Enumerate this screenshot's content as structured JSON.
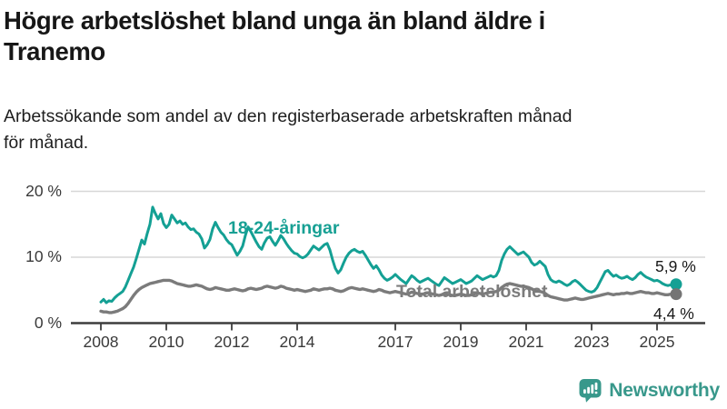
{
  "header": {
    "title_lines": [
      "Högre arbetslöshet bland unga än bland äldre i",
      "Tranemo"
    ],
    "subtitle_lines": [
      "Arbetssökande som andel av den registerbaserade arbetskraften månad",
      "för månad."
    ]
  },
  "chart_data": {
    "type": "line",
    "title": "Högre arbetslöshet bland unga än bland äldre i Tranemo",
    "subtitle": "Arbetssökande som andel av den registerbaserade arbetskraften månad för månad.",
    "frequency": "monthly",
    "period_start": "2008-01",
    "period_end": "2025-08",
    "ylim": [
      0,
      20
    ],
    "grid": "horizontal",
    "y_ticks": [
      {
        "value": 0,
        "label": "0 %"
      },
      {
        "value": 10,
        "label": "10 %"
      },
      {
        "value": 20,
        "label": "20 %"
      }
    ],
    "x_ticks": [
      {
        "value": 2008,
        "label": "2008"
      },
      {
        "value": 2010,
        "label": "2010"
      },
      {
        "value": 2012,
        "label": "2012"
      },
      {
        "value": 2014,
        "label": "2014"
      },
      {
        "value": 2017,
        "label": "2017"
      },
      {
        "value": 2019,
        "label": "2019"
      },
      {
        "value": 2021,
        "label": "2021"
      },
      {
        "value": 2023,
        "label": "2023"
      },
      {
        "value": 2025,
        "label": "2025"
      }
    ],
    "series": [
      {
        "label": "18-24-åringar",
        "color": "#14a094",
        "end_label": "5,9 %",
        "end_value": 5.9,
        "values": [
          3.2,
          3.6,
          3.1,
          3.4,
          3.3,
          3.8,
          4.2,
          4.5,
          4.8,
          5.5,
          6.5,
          7.5,
          8.5,
          9.8,
          11.2,
          12.6,
          12.0,
          13.6,
          15.0,
          17.6,
          16.6,
          15.8,
          16.6,
          15.1,
          14.5,
          15.0,
          16.4,
          15.8,
          15.2,
          15.5,
          15.0,
          15.2,
          14.6,
          14.2,
          14.3,
          13.8,
          13.5,
          12.8,
          11.4,
          11.9,
          12.7,
          14.3,
          15.3,
          14.5,
          13.8,
          13.4,
          12.7,
          12.2,
          11.9,
          11.1,
          10.3,
          10.9,
          11.7,
          13.3,
          14.6,
          13.9,
          13.1,
          12.3,
          11.6,
          11.2,
          12.2,
          12.9,
          13.1,
          12.4,
          11.8,
          12.5,
          13.3,
          12.8,
          12.1,
          11.5,
          11.0,
          10.6,
          10.5,
          10.1,
          9.9,
          10.1,
          10.5,
          11.1,
          11.7,
          11.4,
          11.1,
          11.5,
          11.9,
          12.1,
          11.1,
          9.6,
          8.3,
          7.6,
          8.1,
          9.1,
          10.0,
          10.6,
          11.0,
          11.2,
          10.9,
          10.7,
          10.9,
          10.3,
          9.6,
          8.9,
          8.3,
          8.7,
          8.1,
          7.3,
          6.8,
          6.5,
          6.7,
          7.0,
          7.4,
          7.0,
          6.6,
          6.3,
          6.0,
          6.6,
          7.2,
          6.9,
          6.5,
          6.2,
          6.4,
          6.6,
          6.8,
          6.5,
          6.2,
          5.9,
          5.7,
          6.3,
          6.9,
          6.6,
          6.3,
          6.0,
          6.2,
          6.4,
          6.6,
          6.3,
          6.0,
          6.2,
          6.4,
          6.8,
          7.2,
          6.9,
          6.6,
          6.8,
          7.0,
          7.2,
          7.0,
          7.2,
          8.0,
          9.5,
          10.5,
          11.2,
          11.6,
          11.2,
          10.8,
          10.4,
          10.6,
          10.8,
          10.4,
          10.0,
          9.2,
          8.8,
          9.0,
          9.4,
          9.0,
          8.6,
          7.4,
          6.6,
          6.3,
          6.2,
          6.4,
          6.2,
          5.9,
          5.7,
          5.9,
          6.3,
          6.5,
          6.2,
          5.8,
          5.4,
          5.0,
          4.8,
          4.7,
          4.9,
          5.4,
          6.2,
          7.0,
          7.8,
          8.0,
          7.5,
          7.1,
          7.3,
          7.0,
          6.8,
          6.9,
          7.1,
          6.8,
          6.6,
          6.9,
          7.4,
          7.7,
          7.3,
          7.0,
          6.8,
          6.6,
          6.4,
          6.5,
          6.3,
          6.0,
          5.8,
          5.7,
          5.8,
          6.0,
          5.9
        ]
      },
      {
        "label": "Total arbetslöshet",
        "color": "#7b7b7b",
        "end_label": "4,4 %",
        "end_value": 4.4,
        "values": [
          1.8,
          1.7,
          1.7,
          1.6,
          1.6,
          1.7,
          1.8,
          2.0,
          2.2,
          2.5,
          3.0,
          3.6,
          4.2,
          4.7,
          5.1,
          5.4,
          5.6,
          5.8,
          6.0,
          6.1,
          6.2,
          6.3,
          6.4,
          6.5,
          6.5,
          6.5,
          6.4,
          6.2,
          6.0,
          5.9,
          5.8,
          5.7,
          5.6,
          5.6,
          5.7,
          5.8,
          5.7,
          5.6,
          5.4,
          5.2,
          5.1,
          5.2,
          5.4,
          5.3,
          5.2,
          5.1,
          5.0,
          5.0,
          5.1,
          5.2,
          5.1,
          5.0,
          4.9,
          5.0,
          5.2,
          5.3,
          5.2,
          5.1,
          5.2,
          5.3,
          5.5,
          5.6,
          5.5,
          5.4,
          5.3,
          5.4,
          5.6,
          5.5,
          5.3,
          5.2,
          5.1,
          5.0,
          5.1,
          5.0,
          4.9,
          4.8,
          4.9,
          5.0,
          5.2,
          5.1,
          5.0,
          5.1,
          5.2,
          5.2,
          5.3,
          5.2,
          5.0,
          4.9,
          4.8,
          4.9,
          5.1,
          5.3,
          5.4,
          5.3,
          5.2,
          5.1,
          5.2,
          5.1,
          5.0,
          4.9,
          4.8,
          4.9,
          5.1,
          5.0,
          4.8,
          4.7,
          4.6,
          4.7,
          4.8,
          4.7,
          4.6,
          4.5,
          4.4,
          4.5,
          4.7,
          4.6,
          4.5,
          4.4,
          4.4,
          4.5,
          4.6,
          4.5,
          4.4,
          4.3,
          4.2,
          4.3,
          4.5,
          4.4,
          4.3,
          4.2,
          4.2,
          4.3,
          4.4,
          4.3,
          4.2,
          4.2,
          4.3,
          4.4,
          4.6,
          4.5,
          4.4,
          4.5,
          4.6,
          4.7,
          4.7,
          4.8,
          5.0,
          5.4,
          5.7,
          5.9,
          6.0,
          5.9,
          5.8,
          5.7,
          5.6,
          5.6,
          5.5,
          5.4,
          5.2,
          5.0,
          4.9,
          4.8,
          4.7,
          4.5,
          4.2,
          4.0,
          3.9,
          3.8,
          3.7,
          3.6,
          3.5,
          3.5,
          3.6,
          3.7,
          3.8,
          3.7,
          3.6,
          3.6,
          3.7,
          3.8,
          3.9,
          4.0,
          4.1,
          4.2,
          4.3,
          4.4,
          4.5,
          4.4,
          4.3,
          4.4,
          4.4,
          4.5,
          4.5,
          4.6,
          4.5,
          4.5,
          4.6,
          4.7,
          4.8,
          4.7,
          4.6,
          4.6,
          4.5,
          4.5,
          4.6,
          4.5,
          4.4,
          4.3,
          4.3,
          4.4,
          4.4,
          4.4
        ]
      }
    ],
    "colors": {
      "youth_line": "#14a094",
      "total_line": "#7b7b7b",
      "grid": "#d7d7d7",
      "axis": "#3d3d3d"
    }
  },
  "footer": {
    "brand": "Newsworthy",
    "logo_color": "#38988b"
  }
}
